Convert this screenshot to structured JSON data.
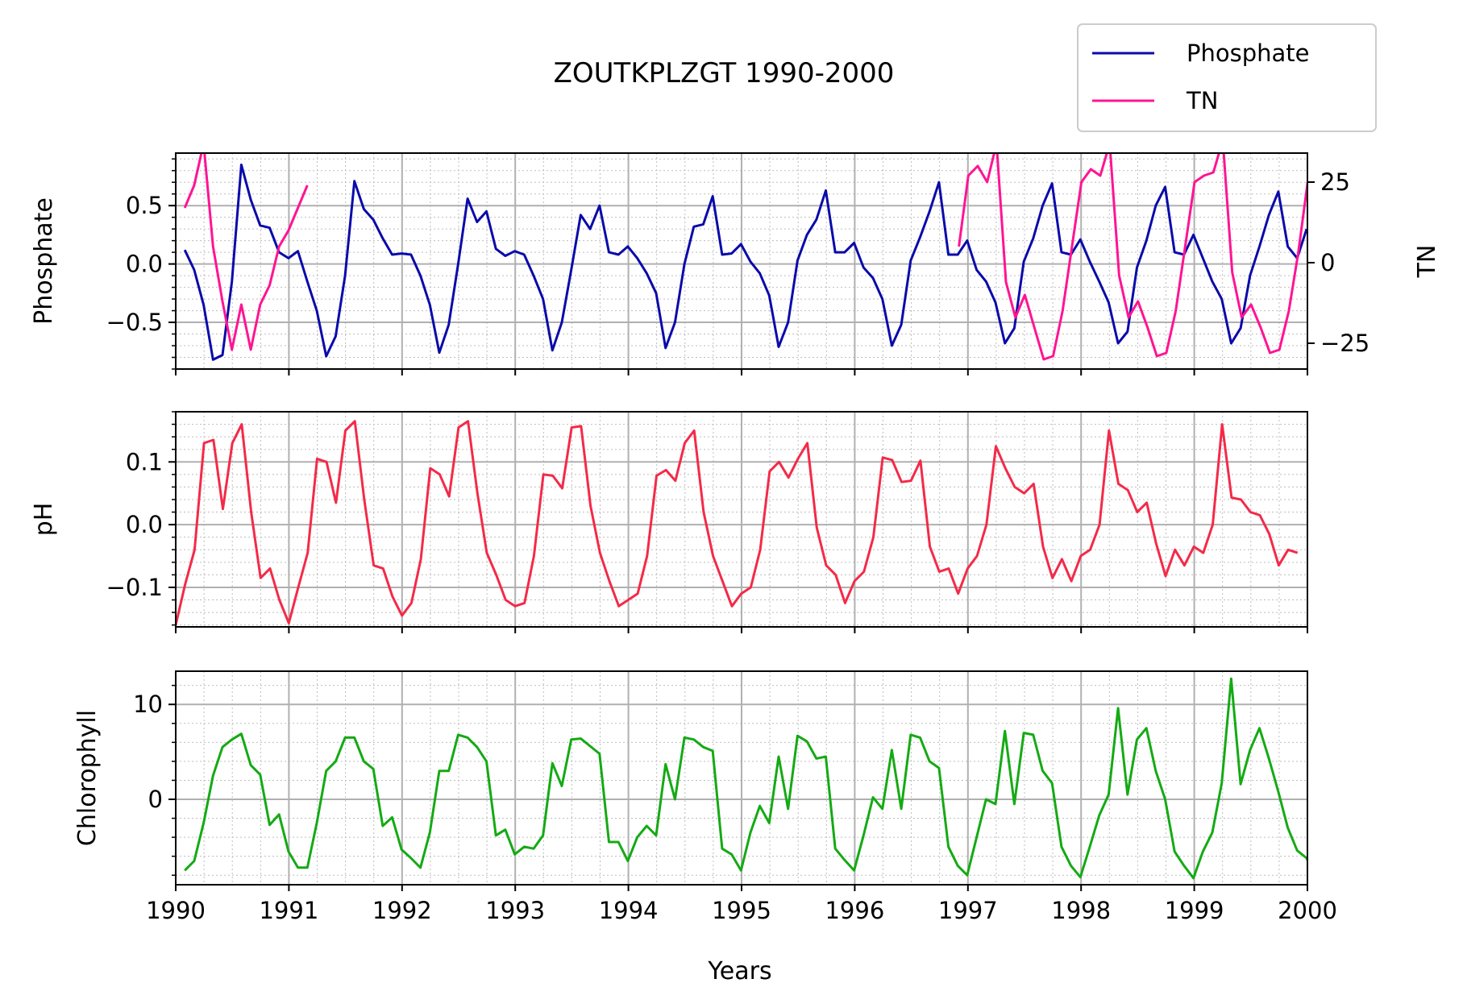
{
  "chart_data": {
    "type": "line",
    "title": "ZOUTKPLZGT 1990-2000",
    "xlabel": "Years",
    "x_ticks": [
      1990,
      1991,
      1992,
      1993,
      1994,
      1995,
      1996,
      1997,
      1998,
      1999,
      2000
    ],
    "xlim": [
      1990,
      2000
    ],
    "legend": {
      "position": "top-right",
      "entries": [
        {
          "label": "Phosphate",
          "color": "#0a0aaa"
        },
        {
          "label": "TN",
          "color": "#ff1493"
        }
      ]
    },
    "panels": [
      {
        "ylabel": "Phosphate",
        "ylim": [
          -0.9,
          0.95
        ],
        "y_ticks": [
          {
            "v": 0.5,
            "t": "0.5"
          },
          {
            "v": 0.0,
            "t": "0.0"
          },
          {
            "v": -0.5,
            "t": "−0.5"
          }
        ],
        "grid": true,
        "series": [
          {
            "name": "Phosphate",
            "color": "#0a0aaa",
            "x_start": 1990.08,
            "x_step": 0.0833,
            "values": [
              0.12,
              -0.05,
              -0.35,
              -0.82,
              -0.78,
              -0.15,
              0.85,
              0.55,
              0.33,
              0.31,
              0.1,
              0.05,
              0.11,
              -0.15,
              -0.4,
              -0.79,
              -0.62,
              -0.1,
              0.71,
              0.47,
              0.38,
              0.22,
              0.08,
              0.09,
              0.08,
              -0.1,
              -0.35,
              -0.76,
              -0.52,
              0.0,
              0.56,
              0.36,
              0.45,
              0.13,
              0.07,
              0.11,
              0.08,
              -0.1,
              -0.3,
              -0.74,
              -0.5,
              -0.05,
              0.42,
              0.3,
              0.5,
              0.1,
              0.08,
              0.15,
              0.05,
              -0.08,
              -0.25,
              -0.72,
              -0.5,
              0.0,
              0.32,
              0.34,
              0.58,
              0.08,
              0.09,
              0.17,
              0.02,
              -0.08,
              -0.27,
              -0.71,
              -0.5,
              0.03,
              0.25,
              0.38,
              0.63,
              0.1,
              0.1,
              0.18,
              -0.03,
              -0.12,
              -0.3,
              -0.7,
              -0.52,
              0.03,
              0.23,
              0.45,
              0.7,
              0.08,
              0.08,
              0.2,
              -0.05,
              -0.15,
              -0.33,
              -0.68,
              -0.55,
              0.02,
              0.22,
              0.5,
              0.69,
              0.1,
              0.08,
              0.21,
              0.02,
              -0.15,
              -0.33,
              -0.68,
              -0.58,
              -0.03,
              0.2,
              0.5,
              0.66,
              0.1,
              0.08,
              0.25,
              0.05,
              -0.15,
              -0.3,
              -0.68,
              -0.55,
              -0.1,
              0.15,
              0.42,
              0.62,
              0.15,
              0.05,
              0.3
            ]
          }
        ],
        "secondary": {
          "ylabel": "TN",
          "ylim": [
            -33,
            34
          ],
          "y_ticks": [
            {
              "v": 25,
              "t": "25"
            },
            {
              "v": 0,
              "t": "0"
            },
            {
              "v": -25,
              "t": "−25"
            }
          ],
          "series": [
            {
              "name": "TN",
              "color": "#ff1493",
              "segments": [
                {
                  "x_start": 1990.08,
                  "x_step": 0.0833,
                  "values": [
                    17,
                    24,
                    37,
                    5,
                    -12,
                    -27,
                    -13,
                    -27,
                    -13,
                    -7,
                    5,
                    10,
                    17,
                    24
                  ]
                },
                {
                  "x_start": 1996.92,
                  "x_step": 0.0833,
                  "values": [
                    5,
                    27,
                    30,
                    25,
                    37,
                    -6,
                    -17,
                    -10,
                    -20,
                    -30,
                    -29,
                    -15,
                    5,
                    25,
                    29,
                    27,
                    37,
                    -4,
                    -17,
                    -12,
                    -20,
                    -29,
                    -28,
                    -15,
                    5,
                    25,
                    27,
                    28,
                    38,
                    -3,
                    -17,
                    -13,
                    -20,
                    -28,
                    -27,
                    -15,
                    3,
                    25
                  ]
                }
              ]
            }
          ]
        }
      },
      {
        "ylabel": "pH",
        "ylim": [
          -0.163,
          0.18
        ],
        "y_ticks": [
          {
            "v": 0.1,
            "t": "0.1"
          },
          {
            "v": 0.0,
            "t": "0.0"
          },
          {
            "v": -0.1,
            "t": "−0.1"
          }
        ],
        "grid": true,
        "series": [
          {
            "name": "pH",
            "color": "#f42a48",
            "x_start": 1990.0,
            "x_step": 0.0833,
            "values": [
              -0.16,
              -0.095,
              -0.04,
              0.13,
              0.135,
              0.025,
              0.13,
              0.16,
              0.02,
              -0.085,
              -0.07,
              -0.12,
              -0.157,
              -0.1,
              -0.045,
              0.105,
              0.1,
              0.035,
              0.15,
              0.165,
              0.04,
              -0.065,
              -0.07,
              -0.115,
              -0.145,
              -0.125,
              -0.055,
              0.09,
              0.08,
              0.045,
              0.155,
              0.165,
              0.05,
              -0.045,
              -0.08,
              -0.12,
              -0.13,
              -0.125,
              -0.05,
              0.08,
              0.078,
              0.058,
              0.155,
              0.157,
              0.03,
              -0.045,
              -0.09,
              -0.13,
              -0.12,
              -0.11,
              -0.05,
              0.078,
              0.087,
              0.07,
              0.13,
              0.15,
              0.02,
              -0.05,
              -0.09,
              -0.13,
              -0.11,
              -0.1,
              -0.04,
              0.085,
              0.1,
              0.075,
              0.105,
              0.13,
              -0.005,
              -0.065,
              -0.08,
              -0.125,
              -0.09,
              -0.075,
              -0.02,
              0.107,
              0.103,
              0.068,
              0.07,
              0.102,
              -0.035,
              -0.075,
              -0.07,
              -0.11,
              -0.07,
              -0.05,
              0.0,
              0.125,
              0.09,
              0.06,
              0.05,
              0.065,
              -0.035,
              -0.085,
              -0.055,
              -0.09,
              -0.05,
              -0.04,
              0.0,
              0.15,
              0.065,
              0.055,
              0.02,
              0.035,
              -0.03,
              -0.082,
              -0.04,
              -0.065,
              -0.035,
              -0.045,
              0.0,
              0.16,
              0.043,
              0.04,
              0.02,
              0.015,
              -0.015,
              -0.065,
              -0.04,
              -0.045
            ]
          }
        ]
      },
      {
        "ylabel": "Chlorophyll",
        "ylim": [
          -9,
          13.5
        ],
        "y_ticks": [
          {
            "v": 10,
            "t": "10"
          },
          {
            "v": 0,
            "t": "0"
          }
        ],
        "grid": true,
        "series": [
          {
            "name": "Chlorophyll",
            "color": "#14aa14",
            "x_start": 1990.08,
            "x_step": 0.0833,
            "values": [
              -7.5,
              -6.5,
              -2.5,
              2.5,
              5.5,
              6.3,
              6.9,
              3.6,
              2.6,
              -2.7,
              -1.6,
              -5.5,
              -7.2,
              -7.2,
              -2.5,
              3.0,
              4.0,
              6.5,
              6.5,
              4.0,
              3.2,
              -2.8,
              -1.9,
              -5.3,
              -6.2,
              -7.2,
              -3.5,
              3.0,
              3.0,
              6.8,
              6.5,
              5.5,
              4.0,
              -3.8,
              -3.2,
              -5.8,
              -5.0,
              -5.2,
              -3.8,
              3.8,
              1.4,
              6.3,
              6.4,
              5.6,
              4.8,
              -4.5,
              -4.5,
              -6.5,
              -4.0,
              -2.8,
              -3.8,
              3.7,
              0.0,
              6.5,
              6.3,
              5.5,
              5.1,
              -5.2,
              -5.8,
              -7.5,
              -3.5,
              -0.7,
              -2.5,
              4.5,
              -1.0,
              6.7,
              6.1,
              4.3,
              4.5,
              -5.2,
              -6.4,
              -7.5,
              -3.8,
              0.2,
              -1.0,
              5.2,
              -1.0,
              6.8,
              6.5,
              4.0,
              3.3,
              -5.0,
              -7.0,
              -8.0,
              -4.0,
              0.0,
              -0.5,
              7.2,
              -0.5,
              7.0,
              6.8,
              3.0,
              1.7,
              -5.0,
              -7.0,
              -8.2,
              -5.0,
              -1.7,
              0.5,
              9.6,
              0.5,
              6.3,
              7.5,
              3.0,
              0.0,
              -5.5,
              -7.0,
              -8.3,
              -5.5,
              -3.5,
              1.7,
              12.7,
              1.6,
              5.2,
              7.5,
              4.3,
              0.8,
              -3.0,
              -5.4,
              -6.2,
              -8.5
            ]
          }
        ]
      }
    ]
  }
}
